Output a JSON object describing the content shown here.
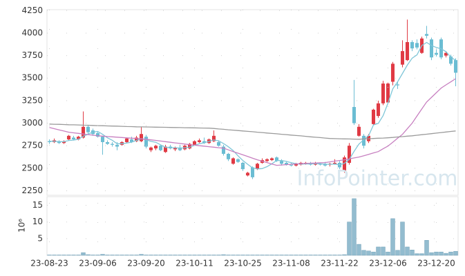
{
  "chart_data": [
    {
      "type": "candlestick",
      "ylim": [
        2200,
        4260
      ],
      "yticks": [
        2250,
        2500,
        2750,
        3000,
        3250,
        3500,
        3750,
        4000,
        4250
      ],
      "grid": true,
      "up_color": "#e03a44",
      "down_color": "#6bbdd3",
      "open": [
        2800,
        2790,
        2800,
        2780,
        2820,
        2840,
        2820,
        2840,
        2960,
        2920,
        2890,
        2850,
        2790,
        2770,
        2760,
        2760,
        2790,
        2820,
        2800,
        2800,
        2850,
        2700,
        2720,
        2750,
        2680,
        2740,
        2710,
        2730,
        2710,
        2720,
        2760,
        2790,
        2800,
        2780,
        2800,
        2790,
        2740,
        2660,
        2550,
        2600,
        2560,
        2420,
        2510,
        2490,
        2560,
        2580,
        2590,
        2620,
        2580,
        2560,
        2540,
        2530,
        2540,
        2550,
        2550,
        2540,
        2550,
        2550,
        2540,
        2550,
        2560,
        2470,
        2560,
        3180,
        2860,
        2860,
        2800,
        2990,
        3080,
        3220,
        3230,
        3460,
        3430,
        3650,
        3700,
        3900,
        3890,
        3780,
        3990,
        3930,
        3780,
        3930,
        3750,
        3740,
        3700
      ],
      "high": [
        2820,
        2830,
        2810,
        2810,
        2870,
        2860,
        2860,
        3130,
        2980,
        2940,
        2910,
        2860,
        2810,
        2790,
        2790,
        2800,
        2840,
        2850,
        2860,
        2960,
        2870,
        2740,
        2760,
        2760,
        2760,
        2760,
        2740,
        2760,
        2760,
        2780,
        2810,
        2830,
        2840,
        2830,
        2920,
        2810,
        2760,
        2670,
        2620,
        2610,
        2570,
        2460,
        2520,
        2560,
        2610,
        2610,
        2620,
        2630,
        2600,
        2570,
        2560,
        2560,
        2570,
        2570,
        2570,
        2570,
        2560,
        2570,
        2560,
        2600,
        2580,
        2640,
        2780,
        3480,
        2990,
        2880,
        2880,
        3160,
        3250,
        3470,
        3450,
        3680,
        3460,
        3920,
        4150,
        3920,
        3930,
        3960,
        4080,
        3950,
        3820,
        3950,
        3800,
        3760,
        3720
      ],
      "low": [
        2770,
        2780,
        2770,
        2770,
        2810,
        2810,
        2810,
        2830,
        2880,
        2860,
        2840,
        2650,
        2760,
        2740,
        2700,
        2750,
        2780,
        2780,
        2790,
        2790,
        2720,
        2680,
        2700,
        2690,
        2670,
        2710,
        2690,
        2690,
        2700,
        2710,
        2750,
        2780,
        2770,
        2770,
        2790,
        2740,
        2640,
        2580,
        2540,
        2560,
        2470,
        2410,
        2380,
        2480,
        2550,
        2570,
        2580,
        2570,
        2530,
        2530,
        2520,
        2520,
        2530,
        2540,
        2530,
        2530,
        2530,
        2520,
        2520,
        2540,
        2490,
        2450,
        2540,
        2980,
        2850,
        2720,
        2780,
        2980,
        3060,
        3200,
        3220,
        3420,
        3380,
        3620,
        3690,
        3800,
        3820,
        3770,
        3940,
        3700,
        3740,
        3710,
        3730,
        3640,
        3410
      ],
      "close": [
        2790,
        2810,
        2780,
        2800,
        2860,
        2820,
        2850,
        2960,
        2900,
        2880,
        2850,
        2790,
        2770,
        2760,
        2740,
        2790,
        2830,
        2790,
        2840,
        2880,
        2740,
        2730,
        2750,
        2700,
        2740,
        2720,
        2730,
        2700,
        2750,
        2770,
        2800,
        2810,
        2780,
        2820,
        2860,
        2750,
        2660,
        2600,
        2610,
        2570,
        2490,
        2450,
        2400,
        2550,
        2590,
        2600,
        2610,
        2580,
        2550,
        2540,
        2530,
        2550,
        2560,
        2560,
        2540,
        2550,
        2540,
        2530,
        2550,
        2560,
        2510,
        2620,
        2750,
        3000,
        2960,
        2750,
        2860,
        3150,
        3220,
        3440,
        3440,
        3660,
        3420,
        3800,
        3900,
        3830,
        3840,
        3940,
        3970,
        3730,
        3760,
        3730,
        3780,
        3660,
        3560
      ],
      "lines": [
        {
          "color": "#7fc6d8",
          "values": [
            2800,
            2800,
            2795,
            2795,
            2808,
            2812,
            2822,
            2855,
            2878,
            2902,
            2908,
            2876,
            2838,
            2810,
            2772,
            2772,
            2780,
            2790,
            2808,
            2828,
            2816,
            2798,
            2788,
            2760,
            2732,
            2728,
            2728,
            2722,
            2728,
            2734,
            2754,
            2772,
            2782,
            2798,
            2814,
            2804,
            2774,
            2738,
            2696,
            2638,
            2586,
            2544,
            2504,
            2492,
            2496,
            2518,
            2550,
            2586,
            2586,
            2576,
            2562,
            2550,
            2546,
            2548,
            2548,
            2552,
            2550,
            2544,
            2544,
            2546,
            2538,
            2554,
            2598,
            2688,
            2768,
            2816,
            2862,
            2980,
            2998,
            3084,
            3222,
            3382,
            3460,
            3552,
            3644,
            3722,
            3758,
            3862,
            3896,
            3862,
            3840,
            3826,
            3794,
            3732,
            3698
          ]
        },
        {
          "color": "#c77fc0",
          "values": [
            2952,
            2939,
            2926,
            2913,
            2900,
            2893,
            2887,
            2880,
            2873,
            2867,
            2860,
            2856,
            2852,
            2849,
            2845,
            2841,
            2837,
            2833,
            2830,
            2826,
            2822,
            2815,
            2809,
            2802,
            2795,
            2788,
            2781,
            2775,
            2768,
            2761,
            2756,
            2750,
            2745,
            2739,
            2734,
            2728,
            2723,
            2704,
            2685,
            2667,
            2649,
            2630,
            2612,
            2594,
            2578,
            2563,
            2547,
            2532,
            2536,
            2540,
            2544,
            2548,
            2551,
            2553,
            2556,
            2558,
            2561,
            2563,
            2571,
            2579,
            2586,
            2594,
            2604,
            2614,
            2624,
            2639,
            2654,
            2670,
            2685,
            2716,
            2746,
            2789,
            2833,
            2876,
            2938,
            3000,
            3080,
            3158,
            3235,
            3287,
            3338,
            3390,
            3425,
            3459,
            3494
          ]
        },
        {
          "color": "#9a9a9a",
          "values": [
            2990,
            2988,
            2987,
            2985,
            2983,
            2982,
            2980,
            2978,
            2977,
            2975,
            2973,
            2972,
            2970,
            2968,
            2967,
            2965,
            2963,
            2962,
            2960,
            2959,
            2958,
            2957,
            2956,
            2955,
            2954,
            2953,
            2952,
            2951,
            2950,
            2949,
            2948,
            2947,
            2946,
            2945,
            2941,
            2936,
            2932,
            2927,
            2923,
            2918,
            2914,
            2909,
            2905,
            2900,
            2896,
            2891,
            2886,
            2882,
            2877,
            2873,
            2868,
            2863,
            2859,
            2854,
            2849,
            2844,
            2840,
            2835,
            2830,
            2829,
            2827,
            2826,
            2825,
            2823,
            2822,
            2825,
            2827,
            2830,
            2833,
            2835,
            2838,
            2842,
            2847,
            2851,
            2856,
            2860,
            2866,
            2872,
            2878,
            2884,
            2890,
            2896,
            2902,
            2908,
            2914
          ]
        }
      ],
      "watermark": "InfoPointer.com"
    },
    {
      "type": "bar",
      "ylabel": "10⁶",
      "ylim": [
        0,
        17.6
      ],
      "yticks": [
        5,
        10,
        15
      ],
      "grid": true,
      "color": "#93bccf",
      "categories": [
        "23-08-23",
        null,
        null,
        null,
        null,
        null,
        null,
        null,
        null,
        null,
        "23-09-06",
        null,
        null,
        null,
        null,
        null,
        null,
        null,
        null,
        null,
        "23-09-20",
        null,
        null,
        null,
        null,
        null,
        null,
        null,
        null,
        null,
        "23-10-11",
        null,
        null,
        null,
        null,
        null,
        null,
        null,
        null,
        null,
        "23-10-25",
        null,
        null,
        null,
        null,
        null,
        null,
        null,
        null,
        null,
        "23-11-08",
        null,
        null,
        null,
        null,
        null,
        null,
        null,
        null,
        null,
        "23-11-22",
        null,
        null,
        null,
        null,
        null,
        null,
        null,
        null,
        null,
        "23-12-06",
        null,
        null,
        null,
        null,
        null,
        null,
        null,
        null,
        null,
        "23-12-20",
        null,
        null,
        null,
        null
      ],
      "values": [
        0.1,
        0.1,
        0.1,
        0.1,
        0.1,
        0.1,
        0.1,
        0.8,
        0.2,
        0.1,
        0.1,
        0.3,
        0.1,
        0.1,
        0.1,
        0.1,
        0.1,
        0.1,
        0.1,
        0.3,
        0.1,
        0.1,
        0.1,
        0.1,
        0.1,
        0.1,
        0.1,
        0.1,
        0.1,
        0.1,
        0.1,
        0.1,
        0.1,
        0.1,
        0.1,
        0.1,
        0.2,
        0.1,
        0.1,
        0.1,
        0.1,
        0.1,
        0.1,
        0.1,
        0.1,
        0.1,
        0.1,
        0.1,
        0.1,
        0.1,
        0.1,
        0.1,
        0.1,
        0.1,
        0.1,
        0.1,
        0.1,
        0.1,
        0.1,
        0.1,
        0.1,
        0.2,
        10,
        17,
        3.3,
        1.5,
        1.3,
        1,
        2.5,
        2.5,
        1,
        11,
        1.5,
        10,
        2.5,
        1.6,
        0.5,
        0.5,
        4.5,
        0.8,
        1,
        1,
        0.6,
        1,
        1.2
      ]
    }
  ]
}
